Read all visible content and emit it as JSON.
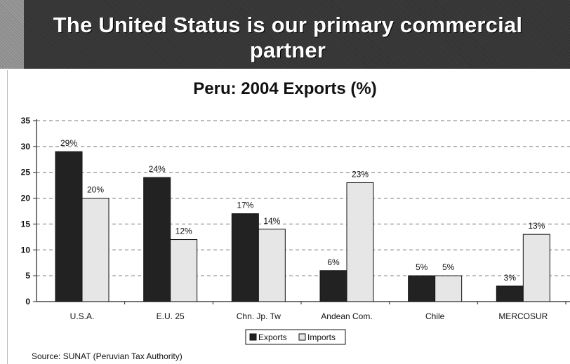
{
  "banner": {
    "title": "The United Status is our primary commercial partner"
  },
  "chart_data": {
    "type": "bar",
    "title": "Peru: 2004 Exports (%)",
    "categories": [
      "U.S.A.",
      "E.U. 25",
      "Chn. Jp. Tw",
      "Andean Com.",
      "Chile",
      "MERCOSUR"
    ],
    "series": [
      {
        "name": "Exports",
        "values": [
          29,
          24,
          17,
          6,
          5,
          3
        ],
        "labels": [
          "29%",
          "24%",
          "17%",
          "6%",
          "5%",
          "3%"
        ],
        "color": "#222222"
      },
      {
        "name": "Imports",
        "values": [
          20,
          12,
          14,
          23,
          5,
          13
        ],
        "labels": [
          "20%",
          "12%",
          "14%",
          "23%",
          "5%",
          "13%"
        ],
        "color": "#e6e6e6"
      }
    ],
    "yticks": [
      0,
      5,
      10,
      15,
      20,
      25,
      30,
      35
    ],
    "ylim": [
      0,
      35
    ],
    "grid": true,
    "legend_position": "bottom"
  },
  "source": "Source: SUNAT  (Peruvian Tax Authority)"
}
